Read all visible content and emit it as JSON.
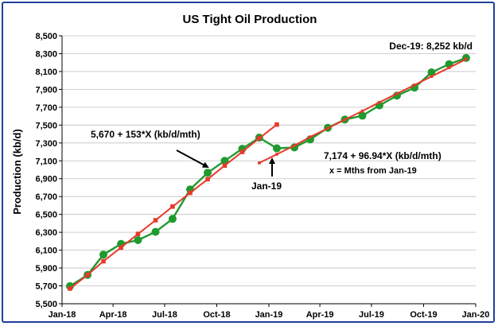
{
  "chart_data": {
    "type": "line",
    "title": "US Tight Oil Production",
    "ylabel": "Production (kb/d)",
    "xlabel": "",
    "ylim": [
      5500,
      8500
    ],
    "yticks": [
      5500,
      5700,
      5900,
      6100,
      6300,
      6500,
      6700,
      6900,
      7100,
      7300,
      7500,
      7700,
      7900,
      8100,
      8300,
      8500
    ],
    "ytick_labels": [
      "5,500",
      "5,700",
      "5,900",
      "6,100",
      "6,300",
      "6,500",
      "6,700",
      "6,900",
      "7,100",
      "7,300",
      "7,500",
      "7,700",
      "7,900",
      "8,100",
      "8,300",
      "8,500"
    ],
    "xticks": [
      "2018-01-01",
      "2018-04-01",
      "2018-07-01",
      "2018-10-01",
      "2019-01-01",
      "2019-04-01",
      "2019-07-01",
      "2019-10-01",
      "2020-01-01"
    ],
    "xtick_labels": [
      "Jan-18",
      "Apr-18",
      "Jul-18",
      "Oct-18",
      "Jan-19",
      "Apr-19",
      "Jul-19",
      "Oct-19",
      "Jan-20"
    ],
    "xlim": [
      "2018-01-01",
      "2020-01-01"
    ],
    "grid": "horizontal",
    "series": [
      {
        "color": "#1f9a2e",
        "marker": "circle",
        "points": [
          [
            "2018-01-15",
            5697
          ],
          [
            "2018-02-15",
            5823
          ],
          [
            "2018-03-15",
            6050
          ],
          [
            "2018-04-15",
            6170
          ],
          [
            "2018-05-15",
            6212
          ],
          [
            "2018-06-15",
            6305
          ],
          [
            "2018-07-15",
            6450
          ],
          [
            "2018-08-15",
            6780
          ],
          [
            "2018-09-15",
            6967
          ],
          [
            "2018-10-15",
            7100
          ],
          [
            "2018-11-15",
            7235
          ],
          [
            "2018-12-15",
            7360
          ],
          [
            "2019-01-15",
            7240
          ],
          [
            "2019-02-15",
            7250
          ],
          [
            "2019-03-15",
            7340
          ],
          [
            "2019-04-15",
            7470
          ],
          [
            "2019-05-15",
            7562
          ],
          [
            "2019-06-15",
            7605
          ],
          [
            "2019-07-15",
            7720
          ],
          [
            "2019-08-15",
            7830
          ],
          [
            "2019-09-15",
            7920
          ],
          [
            "2019-10-15",
            8090
          ],
          [
            "2019-11-15",
            8182
          ],
          [
            "2019-12-15",
            8252
          ]
        ]
      },
      {
        "color": "#e8392a",
        "marker": "square",
        "points": [
          [
            "2018-01-15",
            5670
          ],
          [
            "2018-02-15",
            5823
          ],
          [
            "2018-03-15",
            5976
          ],
          [
            "2018-04-15",
            6129
          ],
          [
            "2018-05-15",
            6282
          ],
          [
            "2018-06-15",
            6435
          ],
          [
            "2018-07-15",
            6588
          ],
          [
            "2018-08-15",
            6741
          ],
          [
            "2018-09-15",
            6894
          ],
          [
            "2018-10-15",
            7047
          ],
          [
            "2018-11-15",
            7200
          ],
          [
            "2018-12-15",
            7353
          ],
          [
            "2019-01-15",
            7506
          ]
        ]
      },
      {
        "color": "#e8392a",
        "marker": "small-square",
        "points": [
          [
            "2018-12-15",
            7077
          ],
          [
            "2019-01-15",
            7174
          ],
          [
            "2019-02-15",
            7271
          ],
          [
            "2019-03-15",
            7368
          ],
          [
            "2019-04-15",
            7464
          ],
          [
            "2019-05-15",
            7561
          ],
          [
            "2019-06-15",
            7658
          ],
          [
            "2019-07-15",
            7755
          ],
          [
            "2019-08-15",
            7852
          ],
          [
            "2019-09-15",
            7949
          ],
          [
            "2019-10-15",
            8045
          ],
          [
            "2019-11-15",
            8142
          ],
          [
            "2019-12-15",
            8239
          ]
        ]
      }
    ],
    "annotations": [
      {
        "text": "Dec-19: 8,252 kb/d"
      },
      {
        "text": "5,670 + 153*X (kb/d/mth)"
      },
      {
        "text": "Jan-19"
      },
      {
        "text": "7,174 + 96.94*X (kb/d/mth)"
      },
      {
        "text": "x = Mths from Jan-19"
      }
    ]
  }
}
